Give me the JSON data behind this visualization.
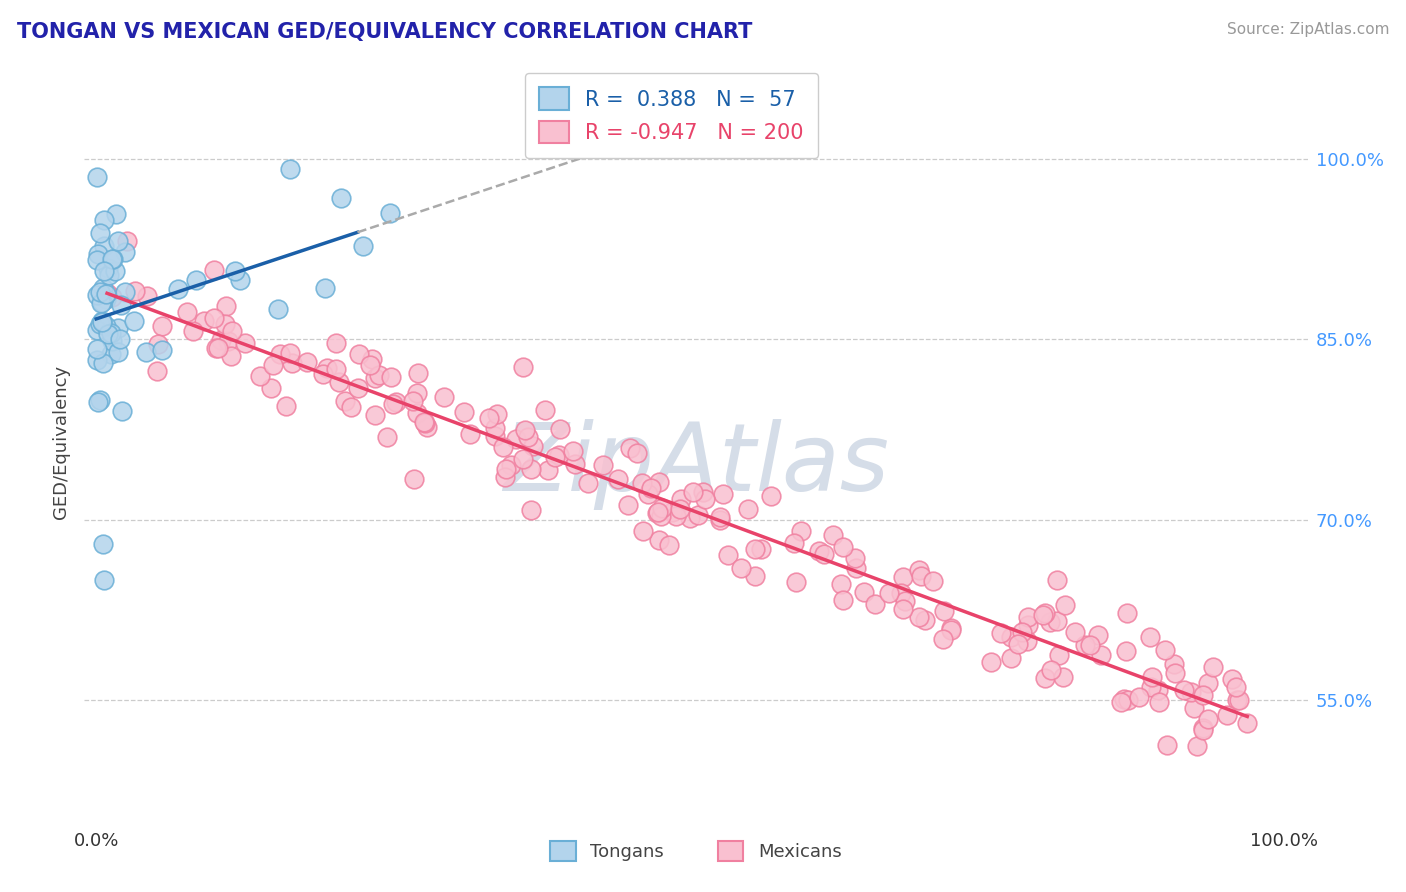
{
  "title": "TONGAN VS MEXICAN GED/EQUIVALENCY CORRELATION CHART",
  "source": "Source: ZipAtlas.com",
  "ylabel": "GED/Equivalency",
  "tongan_R": 0.388,
  "tongan_N": 57,
  "mexican_R": -0.947,
  "mexican_N": 200,
  "tongan_scatter_face": "#b3d4ec",
  "tongan_scatter_edge": "#6aafd6",
  "mexican_scatter_face": "#f9c0d0",
  "mexican_scatter_edge": "#f080a0",
  "trend_tongan_color": "#1a5fa8",
  "trend_mexican_color": "#e8436a",
  "watermark_color": "#d5dde8",
  "title_color": "#2222aa",
  "source_color": "#999999",
  "ylabel_color": "#444444",
  "tick_color_right": "#4499ff",
  "grid_color": "#cccccc",
  "background_color": "#ffffff",
  "legend_label_tongan": "Tongans",
  "legend_label_mexican": "Mexicans",
  "ylim": [
    0.45,
    1.08
  ],
  "xlim": [
    -0.01,
    1.02
  ],
  "y_ticks": [
    0.55,
    0.7,
    0.85,
    1.0
  ],
  "y_tick_labels": [
    "55.0%",
    "70.0%",
    "85.0%",
    "100.0%"
  ],
  "x_tick_left": "0.0%",
  "x_tick_right": "100.0%"
}
